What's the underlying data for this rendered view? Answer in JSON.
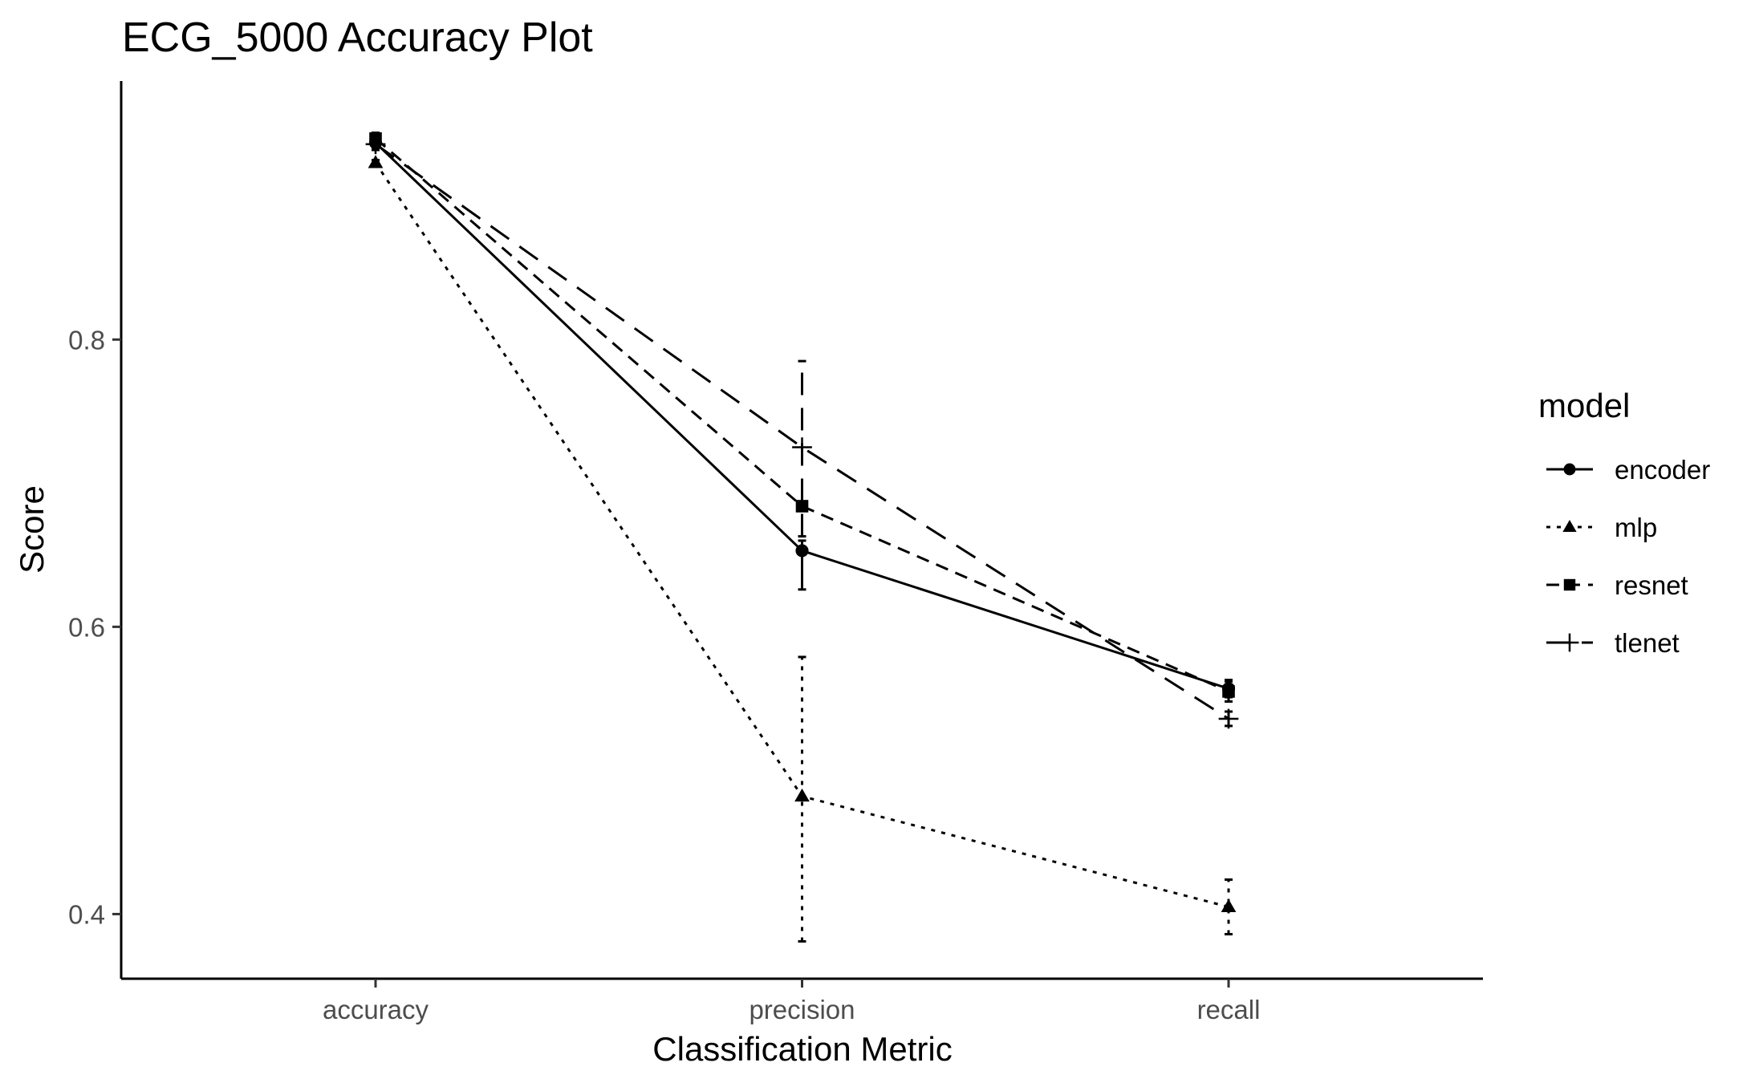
{
  "chart_data": {
    "type": "line",
    "title": "ECG_5000 Accuracy Plot",
    "xlabel": "Classification Metric",
    "ylabel": "Score",
    "categories": [
      "accuracy",
      "precision",
      "recall"
    ],
    "ylim": [
      0.355,
      0.98
    ],
    "yticks": [
      0.4,
      0.6,
      0.8
    ],
    "ytick_labels": [
      "0.4",
      "0.6",
      "0.8"
    ],
    "grid": false,
    "legend": {
      "title": "model",
      "position": "right"
    },
    "series": [
      {
        "name": "encoder",
        "marker": "circle",
        "linestyle": "solid",
        "values": [
          0.937,
          0.653,
          0.557
        ],
        "error_low": [
          0.933,
          0.626,
          0.551
        ],
        "error_high": [
          0.941,
          0.66,
          0.563
        ]
      },
      {
        "name": "mlp",
        "marker": "triangle",
        "linestyle": "dotted",
        "values": [
          0.923,
          0.482,
          0.405
        ],
        "error_low": [
          0.921,
          0.381,
          0.386
        ],
        "error_high": [
          0.925,
          0.579,
          0.424
        ]
      },
      {
        "name": "resnet",
        "marker": "square",
        "linestyle": "dashed",
        "values": [
          0.94,
          0.684,
          0.555
        ],
        "error_low": [
          0.936,
          0.684,
          0.548
        ],
        "error_high": [
          0.944,
          0.684,
          0.562
        ]
      },
      {
        "name": "tlenet",
        "marker": "plus",
        "linestyle": "longdash",
        "values": [
          0.936,
          0.725,
          0.536
        ],
        "error_low": [
          0.932,
          0.663,
          0.531
        ],
        "error_high": [
          0.94,
          0.785,
          0.541
        ]
      }
    ]
  }
}
